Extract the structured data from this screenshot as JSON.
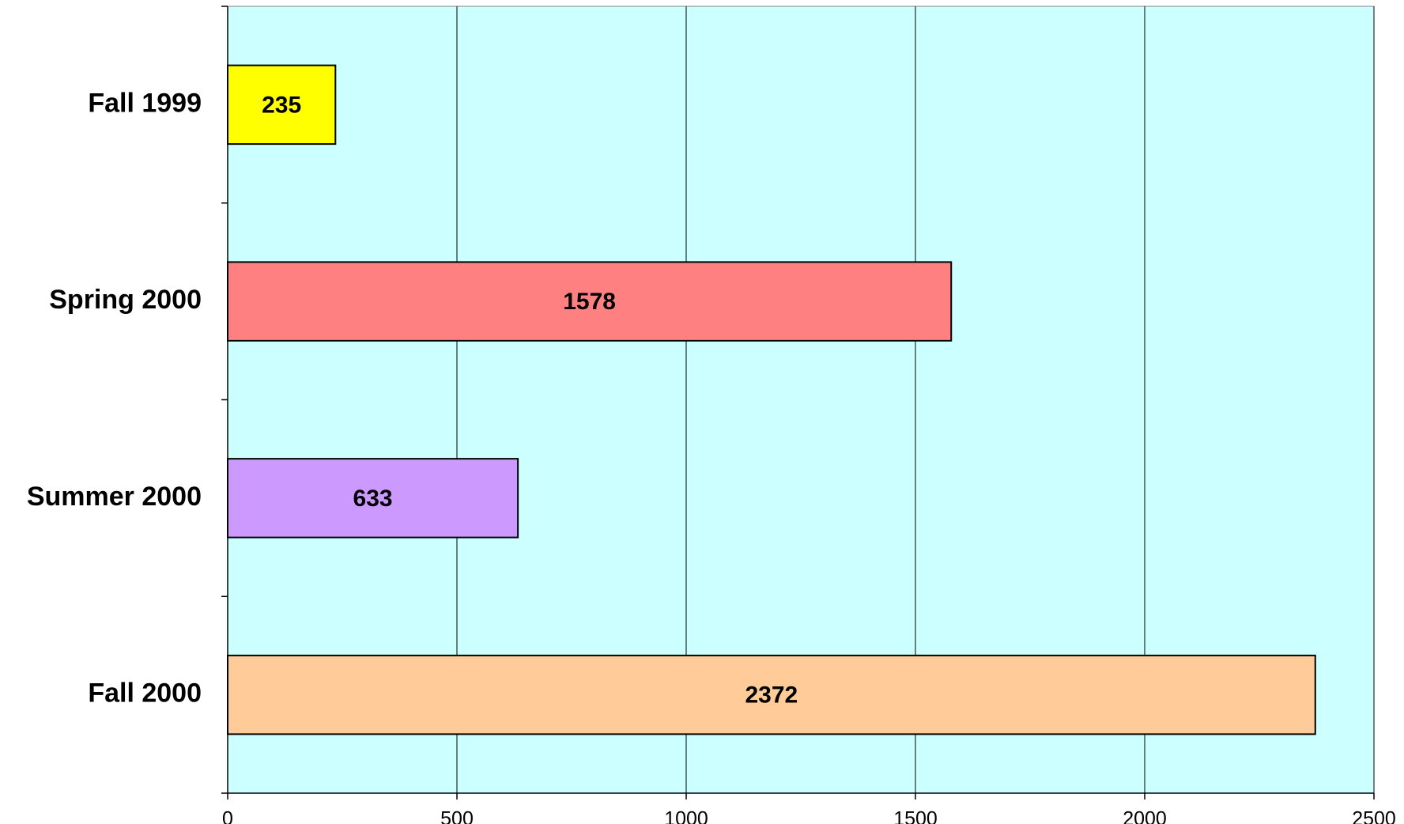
{
  "chart_data": {
    "type": "bar",
    "orientation": "horizontal",
    "categories": [
      "Fall 1999",
      "Spring 2000",
      "Summer 2000",
      "Fall 2000"
    ],
    "values": [
      235,
      1578,
      633,
      2372
    ],
    "colors": [
      "#ffff00",
      "#ff8080",
      "#cc99ff",
      "#ffcc99"
    ],
    "xlim": [
      0,
      2500
    ],
    "xticks": [
      0,
      500,
      1000,
      1500,
      2000,
      2500
    ],
    "grid": true,
    "plot_background": "#ccffff"
  }
}
